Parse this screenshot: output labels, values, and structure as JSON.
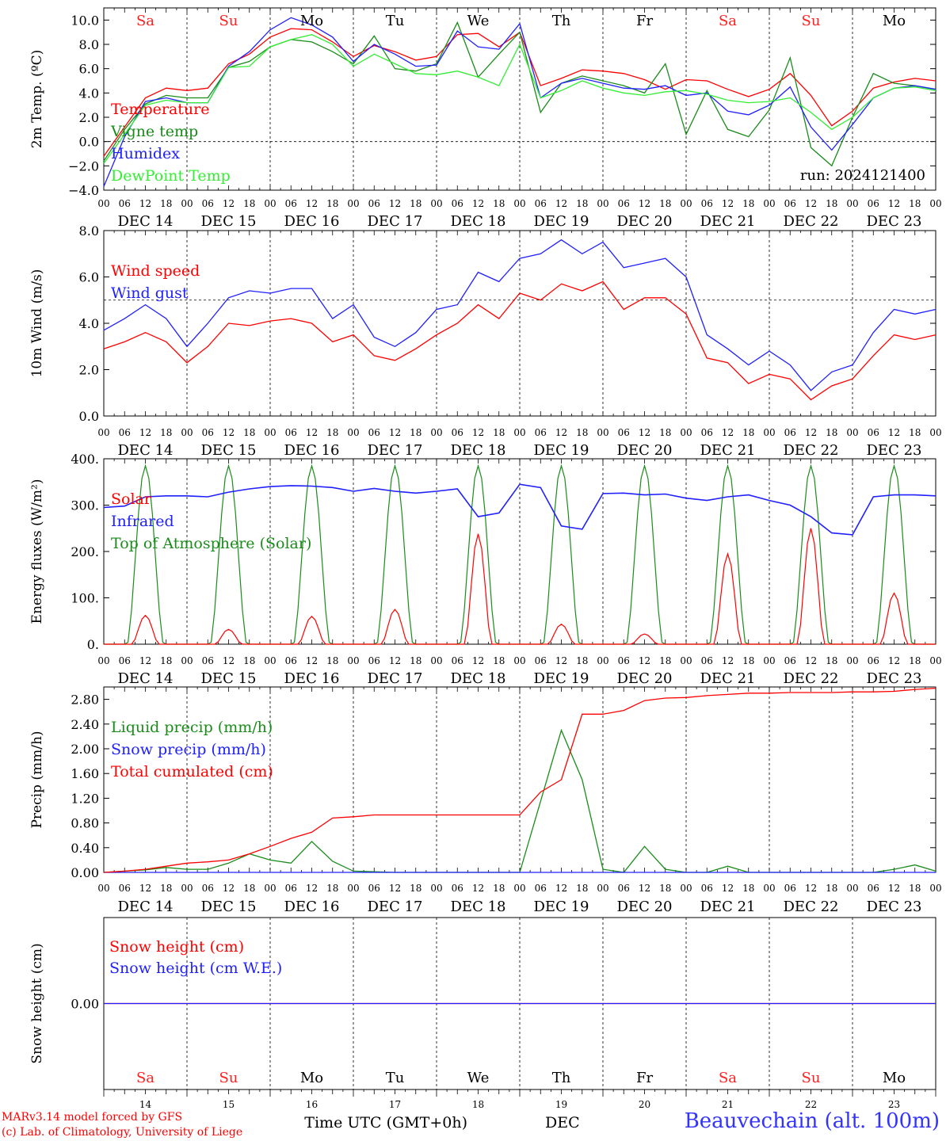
{
  "meta": {
    "run_label": "run: 2024121400",
    "station": "Beauvechain (alt. 100m)",
    "credits": [
      "MARv3.14 model forced by GFS",
      "(c) Lab. of Climatology, University of Liege"
    ],
    "xlabel": "Time UTC (GMT+0h)",
    "month": "DEC"
  },
  "time_axis": {
    "days": [
      "DEC 14",
      "DEC 15",
      "DEC 16",
      "DEC 17",
      "DEC 18",
      "DEC 19",
      "DEC 20",
      "DEC 21",
      "DEC 22",
      "DEC 23"
    ],
    "day_numbers": [
      "14",
      "15",
      "16",
      "17",
      "18",
      "19",
      "20",
      "21",
      "22",
      "23"
    ],
    "weekdays": [
      "Sa",
      "Su",
      "Mo",
      "Tu",
      "We",
      "Th",
      "Fr",
      "Sa",
      "Su",
      "Mo"
    ],
    "weekend": [
      true,
      true,
      false,
      false,
      false,
      false,
      false,
      true,
      true,
      false
    ],
    "hour_ticks": [
      "00",
      "06",
      "12",
      "18"
    ],
    "end_tick": "00"
  },
  "colors": {
    "red": "#ff0000",
    "green": "#1a8c1a",
    "blue": "#2020ff",
    "lightgreen": "#33ee33",
    "weekend": "#ff2020",
    "weekday": "#000000"
  },
  "chart_data": [
    {
      "id": "temp",
      "type": "line",
      "ylabel": "2m Temp. (ºC)",
      "ylim": [
        -4,
        11
      ],
      "yticks": [
        -4,
        -2,
        0,
        2,
        4,
        6,
        8,
        10
      ],
      "ytick_labels": [
        "−4.0",
        "−2.0",
        "0.0",
        "2.0",
        "4.0",
        "6.0",
        "8.0",
        "10.0"
      ],
      "ref_line": 0,
      "x_hours": [
        0,
        6,
        12,
        18,
        24,
        30,
        36,
        42,
        48,
        54,
        60,
        66,
        72,
        78,
        84,
        90,
        96,
        102,
        108,
        114,
        120,
        126,
        132,
        138,
        144,
        150,
        156,
        162,
        168,
        174,
        180,
        186,
        192,
        198,
        204,
        210,
        216,
        222,
        228,
        234,
        240
      ],
      "series": [
        {
          "name": "Temperature",
          "color": "#ff0000",
          "values": [
            -1.2,
            1.2,
            3.6,
            4.4,
            4.2,
            4.4,
            6.4,
            7.2,
            8.6,
            9.3,
            9.2,
            8.2,
            7.0,
            7.9,
            7.4,
            6.7,
            7.0,
            8.8,
            8.9,
            7.8,
            9.0,
            4.6,
            5.2,
            5.9,
            5.8,
            5.6,
            5.1,
            4.3,
            5.1,
            5.0,
            4.3,
            3.7,
            4.3,
            5.6,
            3.8,
            1.3,
            2.5,
            4.4,
            4.9,
            5.2,
            5.0
          ]
        },
        {
          "name": "Vigne temp",
          "color": "#1a8c1a",
          "values": [
            -1.6,
            1.0,
            3.1,
            3.8,
            3.6,
            3.6,
            6.1,
            6.6,
            7.8,
            8.4,
            8.2,
            7.4,
            6.4,
            8.7,
            6.0,
            5.8,
            6.4,
            9.8,
            5.3,
            7.2,
            9.0,
            2.4,
            4.8,
            5.4,
            5.0,
            4.6,
            4.0,
            6.4,
            0.6,
            4.2,
            1.0,
            0.4,
            2.6,
            6.9,
            -0.5,
            -2.0,
            2.0,
            5.6,
            4.8,
            4.6,
            4.3
          ]
        },
        {
          "name": "Humidex",
          "color": "#2020ff",
          "values": [
            -3.7,
            0.4,
            3.3,
            3.6,
            3.2,
            3.2,
            6.2,
            7.4,
            9.2,
            10.2,
            9.6,
            8.6,
            6.6,
            8.0,
            7.2,
            6.2,
            6.3,
            9.1,
            7.8,
            7.6,
            9.7,
            3.6,
            4.8,
            5.2,
            4.8,
            4.4,
            4.3,
            4.6,
            3.8,
            4.0,
            2.5,
            2.2,
            3.0,
            4.5,
            1.2,
            -0.7,
            1.4,
            3.6,
            4.4,
            4.6,
            4.3
          ]
        },
        {
          "name": "DewPoint Temp",
          "color": "#33ee33",
          "values": [
            -1.8,
            0.6,
            3.0,
            3.4,
            3.2,
            3.2,
            6.1,
            6.2,
            7.8,
            8.4,
            8.8,
            8.0,
            6.2,
            7.2,
            6.4,
            5.6,
            5.5,
            5.8,
            5.3,
            4.6,
            8.0,
            3.6,
            4.2,
            5.0,
            4.4,
            4.0,
            3.8,
            4.1,
            4.2,
            3.9,
            3.4,
            3.2,
            3.3,
            3.6,
            2.4,
            1.0,
            2.0,
            3.6,
            4.4,
            4.5,
            4.2
          ]
        }
      ]
    },
    {
      "id": "wind",
      "type": "line",
      "ylabel": "10m Wind (m/s)",
      "ylim": [
        0,
        8
      ],
      "yticks": [
        0,
        2,
        4,
        6,
        8
      ],
      "ytick_labels": [
        "0.0",
        "2.0",
        "4.0",
        "6.0",
        "8.0"
      ],
      "ref_line": 5,
      "x_hours": [
        0,
        6,
        12,
        18,
        24,
        30,
        36,
        42,
        48,
        54,
        60,
        66,
        72,
        78,
        84,
        90,
        96,
        102,
        108,
        114,
        120,
        126,
        132,
        138,
        144,
        150,
        156,
        162,
        168,
        174,
        180,
        186,
        192,
        198,
        204,
        210,
        216,
        222,
        228,
        234,
        240
      ],
      "series": [
        {
          "name": "Wind speed",
          "color": "#ff0000",
          "values": [
            2.9,
            3.2,
            3.6,
            3.2,
            2.3,
            3.0,
            4.0,
            3.9,
            4.1,
            4.2,
            4.0,
            3.2,
            3.5,
            2.6,
            2.4,
            2.9,
            3.5,
            4.0,
            4.8,
            4.2,
            5.3,
            5.0,
            5.7,
            5.4,
            5.8,
            4.6,
            5.1,
            5.1,
            4.4,
            2.5,
            2.3,
            1.4,
            1.8,
            1.6,
            0.7,
            1.3,
            1.6,
            2.6,
            3.5,
            3.3,
            3.5
          ]
        },
        {
          "name": "Wind gust",
          "color": "#2020ff",
          "values": [
            3.7,
            4.2,
            4.8,
            4.2,
            3.0,
            4.0,
            5.1,
            5.4,
            5.3,
            5.5,
            5.5,
            4.2,
            4.8,
            3.4,
            3.0,
            3.6,
            4.6,
            4.8,
            6.2,
            5.8,
            6.8,
            7.0,
            7.6,
            7.0,
            7.5,
            6.4,
            6.6,
            6.8,
            6.0,
            3.5,
            2.9,
            2.2,
            2.8,
            2.2,
            1.1,
            1.9,
            2.2,
            3.6,
            4.6,
            4.4,
            4.6
          ]
        }
      ]
    },
    {
      "id": "flux",
      "type": "line",
      "ylabel": "Energy fluxes (W/m²)",
      "ylim": [
        0,
        400
      ],
      "yticks": [
        0,
        100,
        200,
        300,
        400
      ],
      "ytick_labels": [
        "0.",
        "100.",
        "200.",
        "300.",
        "400."
      ],
      "x_hours": [
        0,
        6,
        12,
        18,
        24,
        30,
        36,
        42,
        48,
        54,
        60,
        66,
        72,
        78,
        84,
        90,
        96,
        102,
        108,
        114,
        120,
        126,
        132,
        138,
        144,
        150,
        156,
        162,
        168,
        174,
        180,
        186,
        192,
        198,
        204,
        210,
        216,
        222,
        228,
        234,
        240
      ],
      "solar_peaks": [
        62,
        32,
        60,
        75,
        238,
        43,
        22,
        195,
        250,
        110
      ],
      "toa_peaks": [
        385,
        385,
        385,
        385,
        385,
        385,
        385,
        385,
        385,
        385
      ],
      "series": [
        {
          "name": "Solar",
          "color": "#ff0000"
        },
        {
          "name": "Infrared",
          "color": "#2020ff",
          "values": [
            295,
            298,
            318,
            320,
            320,
            318,
            328,
            335,
            340,
            342,
            341,
            338,
            330,
            336,
            330,
            326,
            330,
            335,
            275,
            283,
            345,
            338,
            255,
            248,
            325,
            326,
            322,
            324,
            315,
            310,
            318,
            322,
            310,
            300,
            275,
            240,
            236,
            318,
            322,
            322,
            320
          ]
        },
        {
          "name": "Top of Atmosphere (Solar)",
          "color": "#1a8c1a"
        }
      ]
    },
    {
      "id": "precip",
      "type": "line",
      "ylabel": "Precip (mm/h)",
      "ylim": [
        0,
        3.0
      ],
      "yticks": [
        0,
        0.4,
        0.8,
        1.2,
        1.6,
        2.0,
        2.4,
        2.8
      ],
      "ytick_labels": [
        "0.00",
        "0.40",
        "0.80",
        "1.20",
        "1.60",
        "2.00",
        "2.40",
        "2.80"
      ],
      "x_hours": [
        0,
        6,
        12,
        18,
        24,
        30,
        36,
        42,
        48,
        54,
        60,
        66,
        72,
        78,
        84,
        90,
        96,
        102,
        108,
        114,
        120,
        126,
        132,
        138,
        144,
        150,
        156,
        162,
        168,
        174,
        180,
        186,
        192,
        198,
        204,
        210,
        216,
        222,
        228,
        234,
        240
      ],
      "series": [
        {
          "name": "Liquid precip (mm/h)",
          "color": "#1a8c1a",
          "values": [
            0.0,
            0.02,
            0.04,
            0.08,
            0.05,
            0.05,
            0.15,
            0.3,
            0.2,
            0.15,
            0.5,
            0.18,
            0.02,
            0.01,
            0.0,
            0.0,
            0.0,
            0.0,
            0.0,
            0.0,
            0.0,
            1.15,
            2.3,
            1.5,
            0.05,
            0.0,
            0.42,
            0.05,
            0.0,
            0.0,
            0.1,
            0.0,
            0.0,
            0.0,
            0.0,
            0.0,
            0.0,
            0.0,
            0.05,
            0.12,
            0.02
          ]
        },
        {
          "name": "Snow precip (mm/h)",
          "color": "#2020ff",
          "values": [
            0,
            0,
            0,
            0,
            0,
            0,
            0,
            0,
            0,
            0,
            0,
            0,
            0,
            0,
            0,
            0,
            0,
            0,
            0,
            0,
            0,
            0,
            0,
            0,
            0,
            0,
            0,
            0,
            0,
            0,
            0,
            0,
            0,
            0,
            0,
            0,
            0,
            0,
            0,
            0,
            0
          ]
        },
        {
          "name": "Total cumulated (cm)",
          "color": "#ff0000",
          "values": [
            0.0,
            0.02,
            0.05,
            0.1,
            0.15,
            0.17,
            0.2,
            0.3,
            0.42,
            0.55,
            0.65,
            0.88,
            0.9,
            0.93,
            0.93,
            0.93,
            0.93,
            0.93,
            0.93,
            0.93,
            0.93,
            1.3,
            1.5,
            2.56,
            2.56,
            2.62,
            2.78,
            2.82,
            2.83,
            2.86,
            2.88,
            2.9,
            2.9,
            2.91,
            2.91,
            2.91,
            2.92,
            2.92,
            2.93,
            2.96,
            2.98
          ]
        }
      ]
    },
    {
      "id": "snow",
      "type": "line",
      "ylabel": "Snow height (cm)",
      "ylim": [
        -1,
        1
      ],
      "yticks": [
        0
      ],
      "ytick_labels": [
        "0.00"
      ],
      "x_hours": [
        0,
        240
      ],
      "series": [
        {
          "name": "Snow height (cm)",
          "color": "#ff0000",
          "values": [
            0,
            0
          ]
        },
        {
          "name": "Snow height (cm W.E.)",
          "color": "#2020ff",
          "values": [
            0,
            0
          ]
        }
      ]
    }
  ]
}
